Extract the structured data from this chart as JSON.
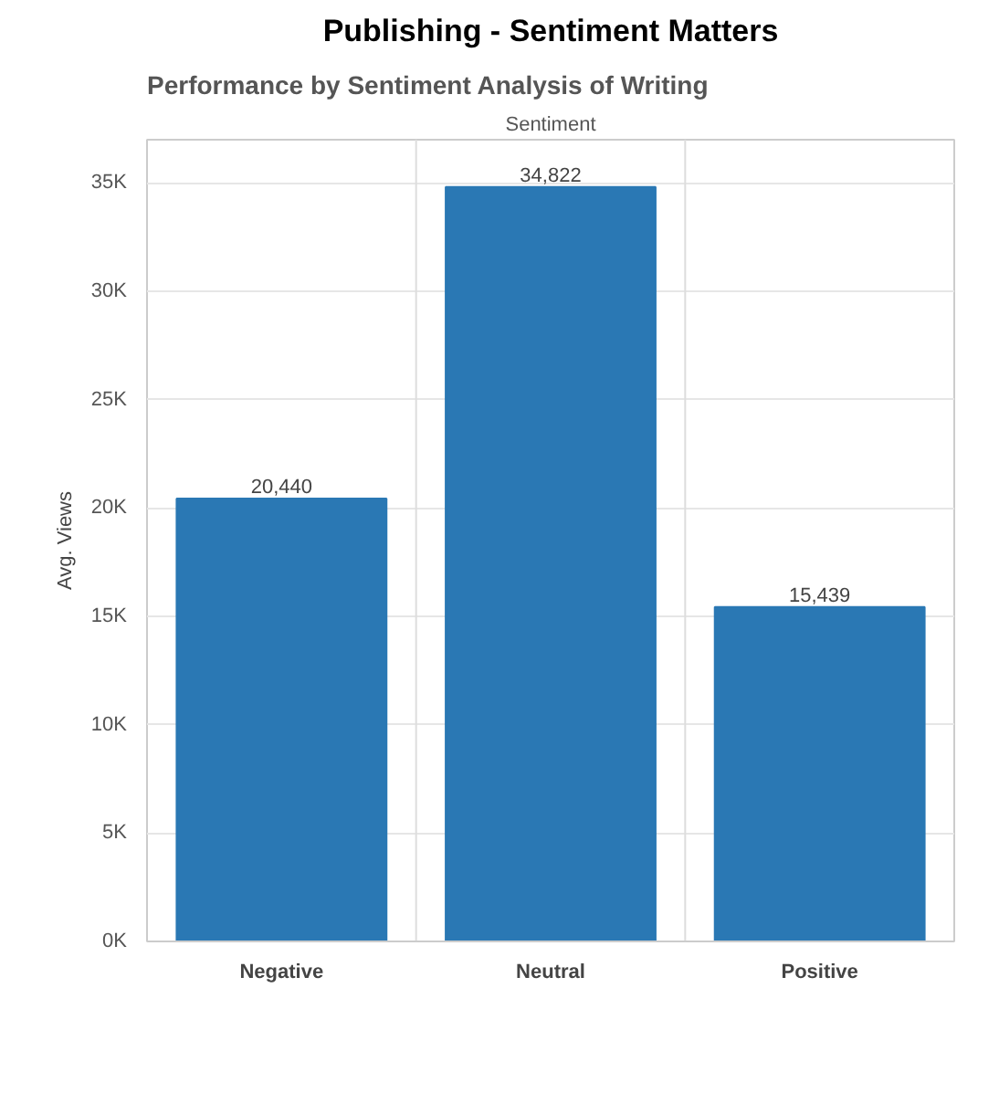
{
  "chart_data": {
    "type": "bar",
    "title": "Publishing - Sentiment Matters",
    "subtitle": "Performance by Sentiment Analysis of Writing",
    "xlabel": "Sentiment",
    "ylabel": "Avg. Views",
    "categories": [
      "Negative",
      "Neutral",
      "Positive"
    ],
    "values": [
      20440,
      34822,
      15439
    ],
    "value_labels": [
      "20,440",
      "34,822",
      "15,439"
    ],
    "color": "#2a78b4",
    "ylim": [
      0,
      37000
    ],
    "yticks": [
      {
        "value": 0,
        "label": "0K"
      },
      {
        "value": 5000,
        "label": "5K"
      },
      {
        "value": 10000,
        "label": "10K"
      },
      {
        "value": 15000,
        "label": "15K"
      },
      {
        "value": 20000,
        "label": "20K"
      },
      {
        "value": 25000,
        "label": "25K"
      },
      {
        "value": 30000,
        "label": "30K"
      },
      {
        "value": 35000,
        "label": "35K"
      }
    ],
    "grid": "y"
  }
}
